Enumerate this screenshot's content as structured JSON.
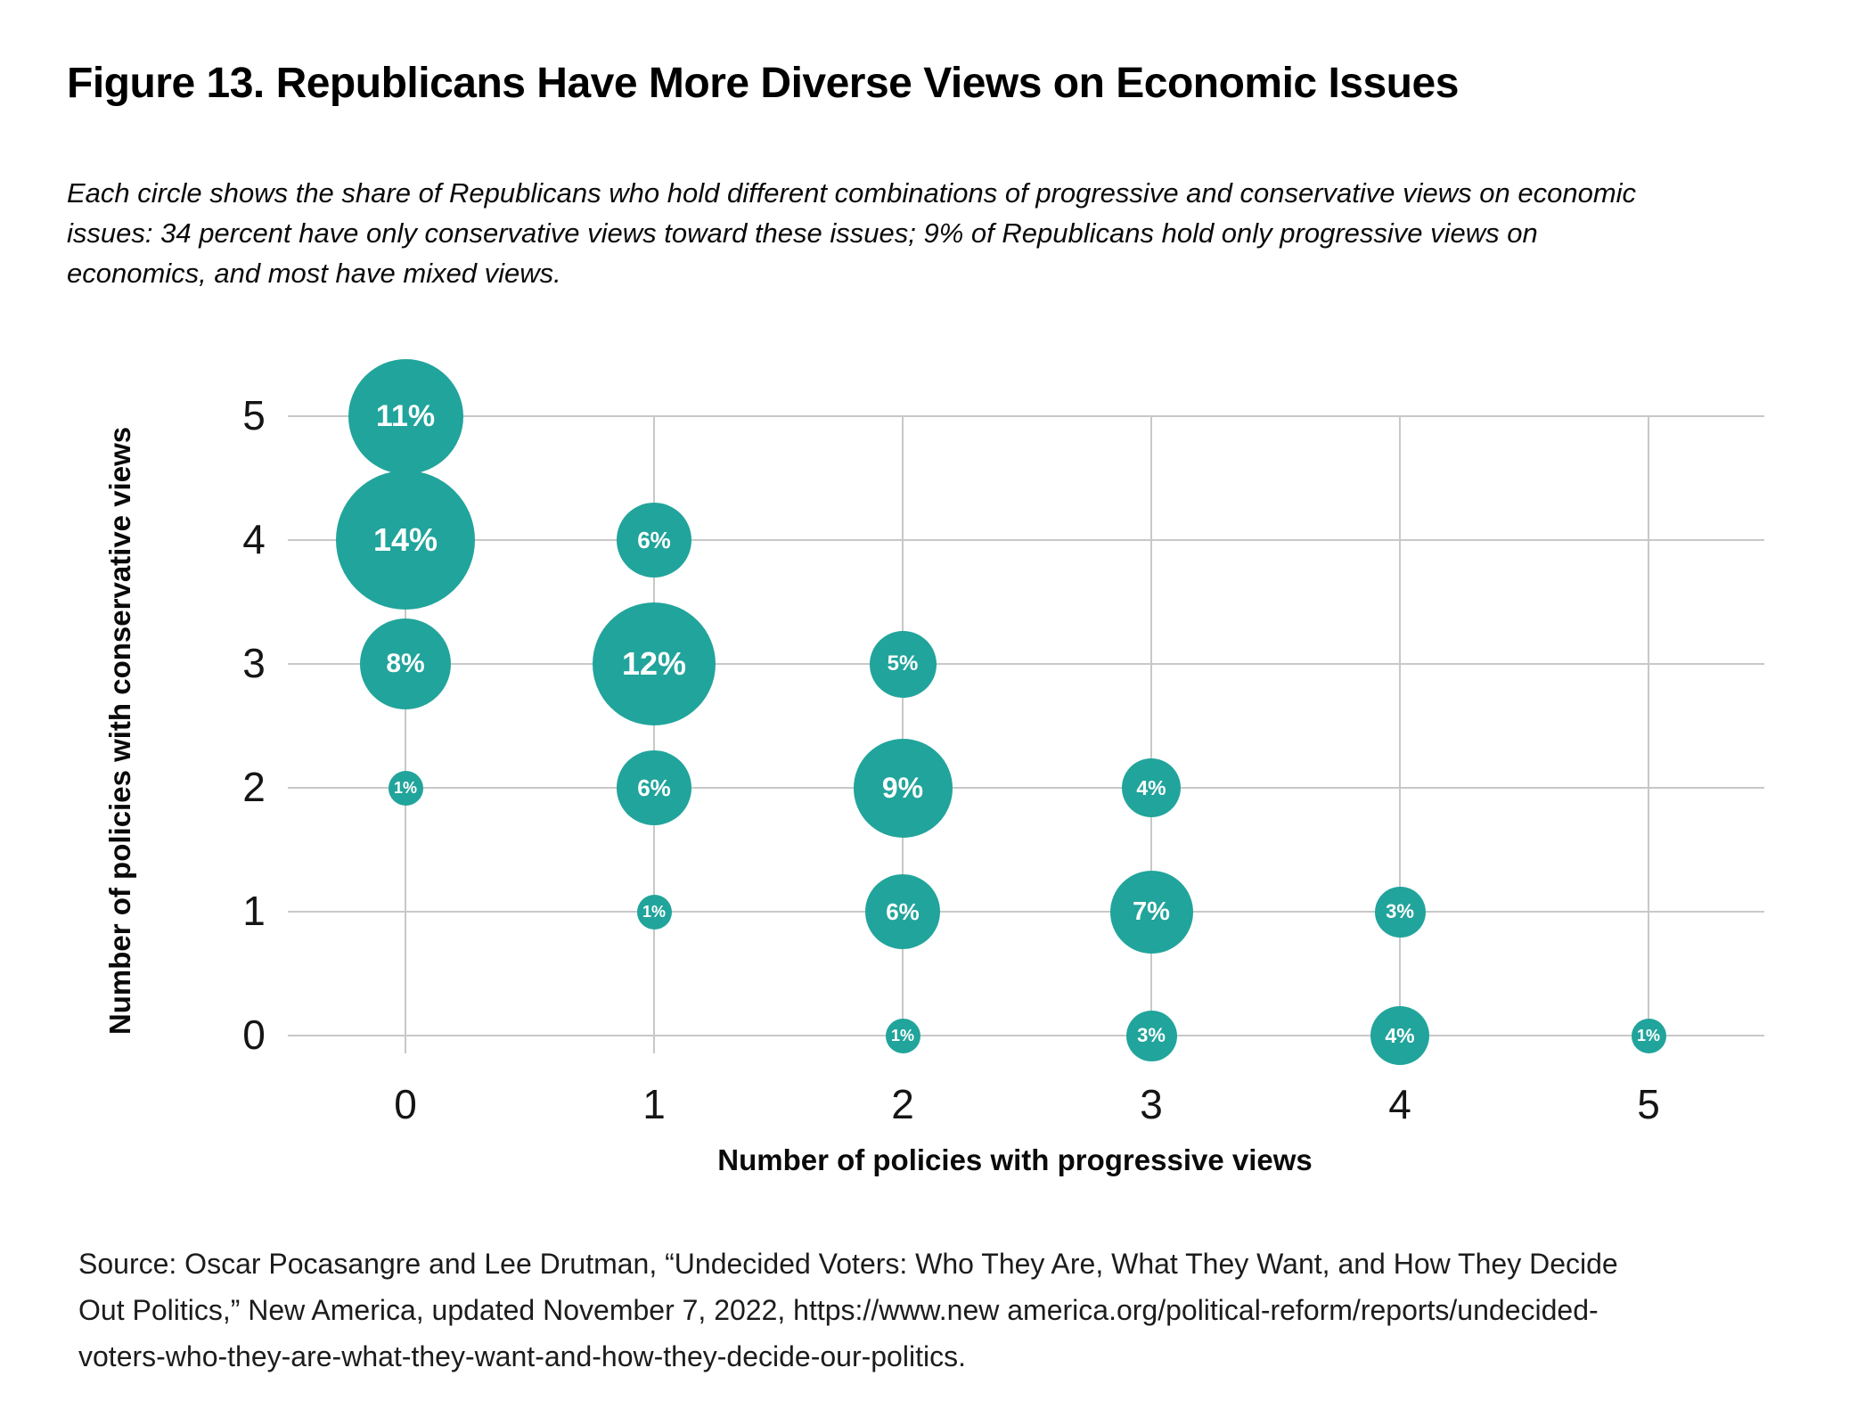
{
  "figure": {
    "title": "Figure 13. Republicans Have More Diverse Views on Economic Issues",
    "description": "Each circle shows the share of Republicans who hold different combinations of progressive and conservative views on economic\nissues: 34 percent have only conservative views toward these issues; 9% of Republicans hold only progressive views on\neconomics, and most have mixed views.",
    "source": "Source: Oscar Pocasangre and Lee Drutman, “Undecided Voters: Who They Are, What They Want, and How They Decide\nOut Politics,” New America, updated November 7, 2022, https://www.new america.org/political-reform/reports/undecided-\nvoters-who-they-are-what-they-want-and-how-they-decide-our-politics."
  },
  "chart_data": {
    "type": "scatter",
    "subtype": "bubble",
    "title": "Figure 13. Republicans Have More Diverse Views on Economic Issues",
    "xlabel": "Number of policies with progressive views",
    "ylabel": "Number of policies with conservative views",
    "x_ticks": [
      0,
      1,
      2,
      3,
      4,
      5
    ],
    "y_ticks": [
      0,
      1,
      2,
      3,
      4,
      5
    ],
    "xlim": [
      -0.6,
      5.5
    ],
    "ylim": [
      -0.2,
      5.5
    ],
    "grid": true,
    "legend": false,
    "bubble_color": "#21a49b",
    "bubble_text_color": "#ffffff",
    "gridline_color": "#c8c8c8",
    "size_note": "bubble area proportional to share of Republicans",
    "points": [
      {
        "x": 0,
        "y": 5,
        "value": 11,
        "label": "11%"
      },
      {
        "x": 0,
        "y": 4,
        "value": 14,
        "label": "14%"
      },
      {
        "x": 0,
        "y": 3,
        "value": 8,
        "label": "8%"
      },
      {
        "x": 0,
        "y": 2,
        "value": 1,
        "label": "1%"
      },
      {
        "x": 1,
        "y": 4,
        "value": 6,
        "label": "6%"
      },
      {
        "x": 1,
        "y": 3,
        "value": 12,
        "label": "12%"
      },
      {
        "x": 1,
        "y": 2,
        "value": 6,
        "label": "6%"
      },
      {
        "x": 1,
        "y": 1,
        "value": 1,
        "label": "1%"
      },
      {
        "x": 2,
        "y": 3,
        "value": 5,
        "label": "5%"
      },
      {
        "x": 2,
        "y": 2,
        "value": 9,
        "label": "9%"
      },
      {
        "x": 2,
        "y": 1,
        "value": 6,
        "label": "6%"
      },
      {
        "x": 2,
        "y": 0,
        "value": 1,
        "label": "1%"
      },
      {
        "x": 3,
        "y": 2,
        "value": 4,
        "label": "4%"
      },
      {
        "x": 3,
        "y": 1,
        "value": 7,
        "label": "7%"
      },
      {
        "x": 3,
        "y": 0,
        "value": 3,
        "label": "3%"
      },
      {
        "x": 4,
        "y": 1,
        "value": 3,
        "label": "3%"
      },
      {
        "x": 4,
        "y": 0,
        "value": 4,
        "label": "4%"
      },
      {
        "x": 5,
        "y": 0,
        "value": 1,
        "label": "1%"
      }
    ]
  }
}
